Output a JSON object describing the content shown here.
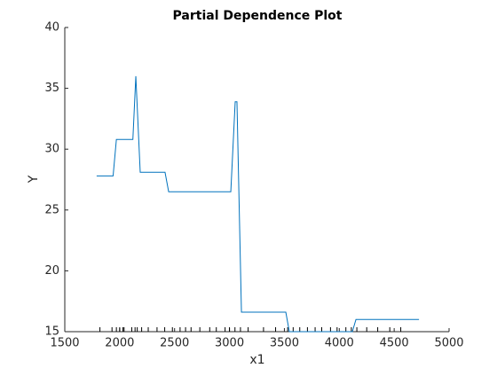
{
  "chart_data": {
    "type": "line",
    "title": "Partial Dependence Plot",
    "xlabel": "x1",
    "ylabel": "Y",
    "x": [
      1790,
      1940,
      1970,
      2120,
      2147,
      2187,
      2413,
      2446,
      3012,
      3052,
      3068,
      3109,
      3513,
      3545,
      4119,
      4152,
      4726
    ],
    "series": [
      {
        "color": "#0072bd",
        "values": [
          27.8,
          27.8,
          30.8,
          30.8,
          36,
          28.1,
          28.1,
          26.5,
          26.5,
          33.9,
          33.9,
          16.6,
          16.6,
          15,
          15,
          16,
          16
        ]
      }
    ],
    "rug": [
      1820,
      1930,
      1970,
      2000,
      2030,
      2040,
      2110,
      2140,
      2160,
      2200,
      2260,
      2340,
      2410,
      2480,
      2550,
      2600,
      2650,
      2730,
      2820,
      2880,
      2960,
      3000,
      3050,
      3100,
      3170,
      3310,
      3420,
      3530,
      3580,
      3640,
      3710,
      3780,
      3840,
      3920,
      3980,
      4060,
      4110,
      4160,
      4250,
      4350,
      4460,
      4560
    ],
    "xlim": [
      1500,
      5000
    ],
    "xticks": [
      1500,
      2000,
      2500,
      3000,
      3500,
      4000,
      4500,
      5000
    ],
    "ylim": [
      15,
      40
    ],
    "yticks": [
      15,
      20,
      25,
      30,
      35,
      40
    ]
  }
}
